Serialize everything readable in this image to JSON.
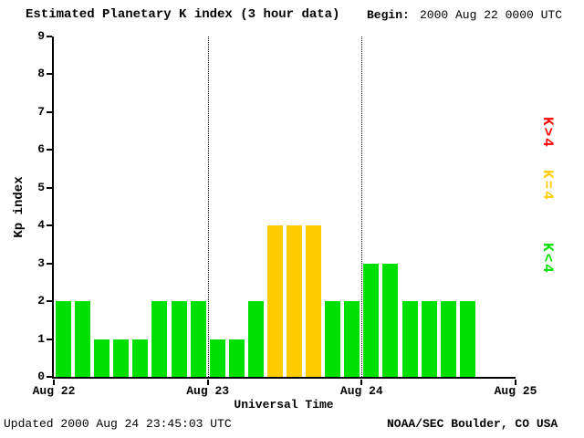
{
  "header": {
    "title": "Estimated Planetary K index (3 hour data)",
    "begin_label": "Begin:",
    "begin_value": "2000 Aug 22 0000 UTC"
  },
  "footer": {
    "updated": "Updated 2000 Aug 24 23:45:03 UTC",
    "source": "NOAA/SEC Boulder, CO USA"
  },
  "legend": [
    {
      "label": "K>4",
      "color": "#ff0000"
    },
    {
      "label": "K=4",
      "color": "#ffcc00"
    },
    {
      "label": "K<4",
      "color": "#00e000"
    }
  ],
  "chart_data": {
    "type": "bar",
    "title": "Estimated Planetary K index (3 hour data)",
    "xlabel": "Universal Time",
    "ylabel": "Kp index",
    "ylim": [
      0,
      9
    ],
    "y_ticks": [
      0,
      1,
      2,
      3,
      4,
      5,
      6,
      7,
      8,
      9
    ],
    "x_ticks": [
      "Aug 22",
      "Aug 23",
      "Aug 24",
      "Aug 25"
    ],
    "bars_per_day": 8,
    "bar_period_hours": 3,
    "values": [
      2,
      2,
      1,
      1,
      1,
      2,
      2,
      2,
      1,
      1,
      2,
      4,
      4,
      4,
      2,
      2,
      3,
      3,
      2,
      2,
      2,
      2
    ],
    "colors_rule": {
      "lt4": "#00e000",
      "eq4": "#ffcc00",
      "gt4": "#ff0000"
    },
    "grid": "vertical dotted lines at day boundaries",
    "legend_position": "right, rotated"
  }
}
